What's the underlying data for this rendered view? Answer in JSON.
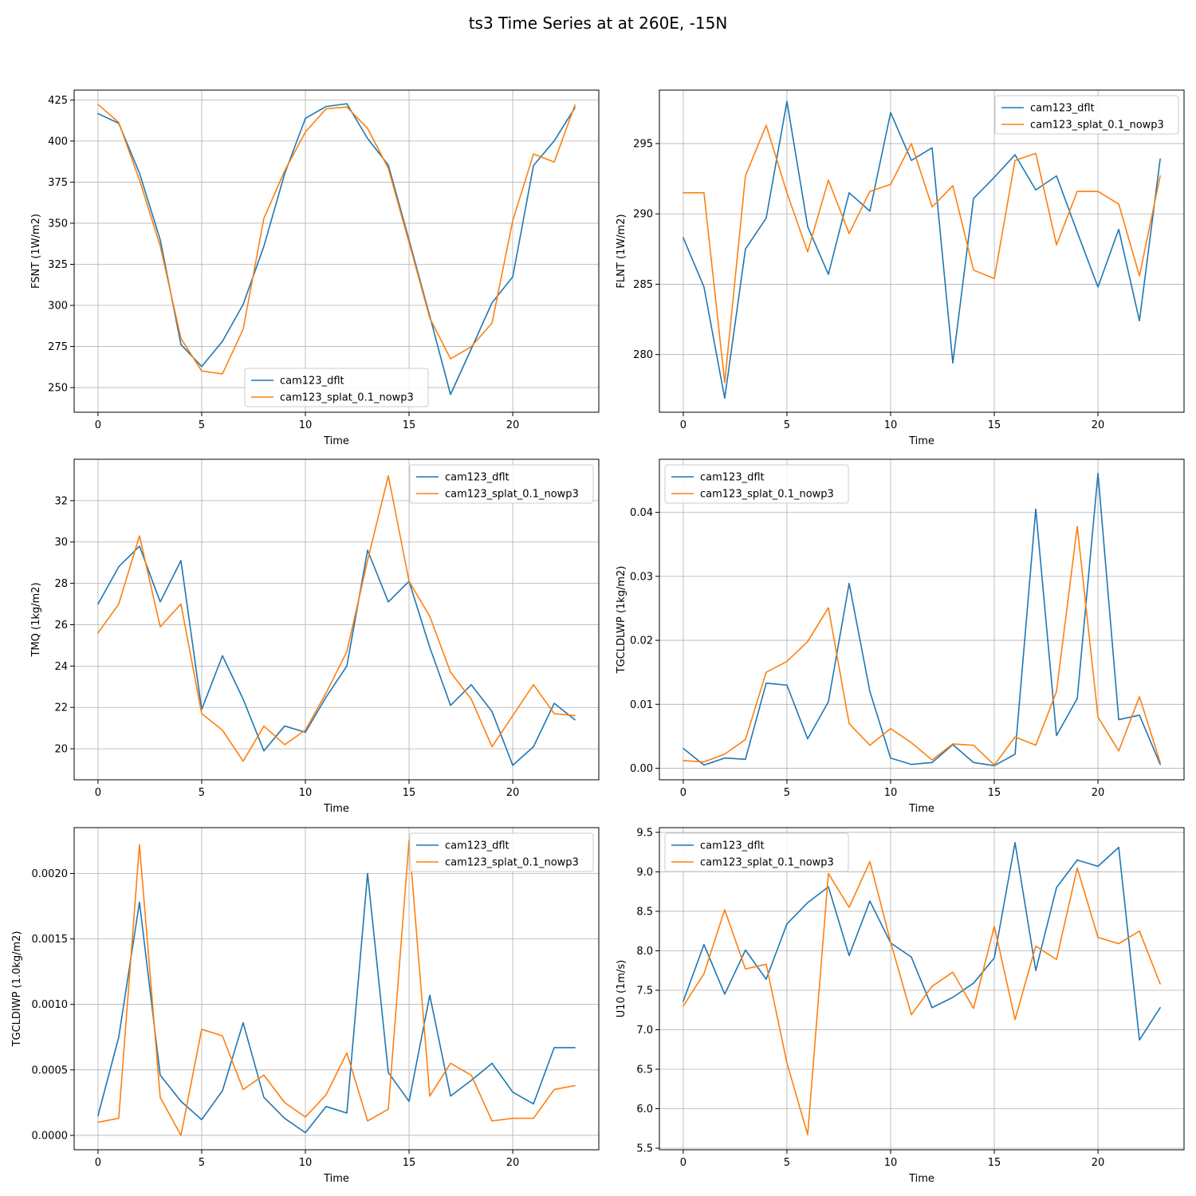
{
  "title": "ts3 Time Series at at 260E, -15N",
  "colors": {
    "cam123_dflt": "#1f77b4",
    "cam123_splat_0.1_nowp3": "#ff7f0e"
  },
  "chart_data": [
    {
      "type": "line",
      "id": "fsnt",
      "title": "",
      "xlabel": "Time",
      "ylabel": "FSNT (1W/m2)",
      "xlim": [
        -1.15,
        24.15
      ],
      "ylim": [
        235,
        431
      ],
      "xticks": [
        "0",
        "5",
        "10",
        "15",
        "20"
      ],
      "xtick_values": [
        0,
        5,
        10,
        15,
        20
      ],
      "yticks": [
        "250",
        "275",
        "300",
        "325",
        "350",
        "375",
        "400",
        "425"
      ],
      "ytick_values": [
        250,
        275,
        300,
        325,
        350,
        375,
        400,
        425
      ],
      "legend_loc": "lower-center",
      "x": [
        0,
        1,
        2,
        3,
        4,
        5,
        6,
        7,
        8,
        9,
        10,
        11,
        12,
        13,
        14,
        15,
        16,
        17,
        18,
        19,
        20,
        21,
        22,
        23
      ],
      "series": [
        {
          "name": "cam123_dflt",
          "values": [
            416.7,
            410.8,
            380.5,
            340.0,
            276.2,
            262.8,
            278.1,
            300.6,
            336.0,
            380.0,
            413.8,
            421.0,
            422.7,
            401.6,
            385.4,
            339.8,
            293.5,
            245.8,
            273.5,
            301.6,
            317.4,
            385.1,
            400.1,
            420.3
          ]
        },
        {
          "name": "cam123_splat_0.1_nowp3",
          "values": [
            422.3,
            411.3,
            376.3,
            336.2,
            279.9,
            260.1,
            258.3,
            285.5,
            353.0,
            381.8,
            405.5,
            419.6,
            420.7,
            407.7,
            383.4,
            338.2,
            292.3,
            267.5,
            274.9,
            289.2,
            351.6,
            392.1,
            387.2,
            421.9
          ]
        }
      ]
    },
    {
      "type": "line",
      "id": "flnt",
      "title": "",
      "xlabel": "Time",
      "ylabel": "FLNT (1W/m2)",
      "xlim": [
        -1.15,
        24.15
      ],
      "ylim": [
        275.9,
        298.8
      ],
      "xticks": [
        "0",
        "5",
        "10",
        "15",
        "20"
      ],
      "xtick_values": [
        0,
        5,
        10,
        15,
        20
      ],
      "yticks": [
        "280",
        "285",
        "290",
        "295"
      ],
      "ytick_values": [
        280,
        285,
        290,
        295
      ],
      "legend_loc": "upper-right",
      "x": [
        0,
        1,
        2,
        3,
        4,
        5,
        6,
        7,
        8,
        9,
        10,
        11,
        12,
        13,
        14,
        15,
        16,
        17,
        18,
        19,
        20,
        21,
        22,
        23
      ],
      "series": [
        {
          "name": "cam123_dflt",
          "values": [
            288.3,
            284.8,
            276.9,
            287.5,
            289.7,
            298.0,
            289.1,
            285.7,
            291.5,
            290.2,
            297.2,
            293.8,
            294.7,
            279.4,
            291.1,
            292.6,
            294.2,
            291.7,
            292.7,
            288.7,
            284.8,
            288.9,
            282.4,
            293.9
          ]
        },
        {
          "name": "cam123_splat_0.1_nowp3",
          "values": [
            291.5,
            291.5,
            278.0,
            292.7,
            296.3,
            291.5,
            287.3,
            292.4,
            288.6,
            291.6,
            292.1,
            295.0,
            290.5,
            292.0,
            286.0,
            285.4,
            293.8,
            294.3,
            287.8,
            291.6,
            291.6,
            290.7,
            285.6,
            292.7
          ]
        }
      ]
    },
    {
      "type": "line",
      "id": "tmq",
      "title": "",
      "xlabel": "Time",
      "ylabel": "TMQ (1kg/m2)",
      "xlim": [
        -1.15,
        24.15
      ],
      "ylim": [
        18.5,
        34.0
      ],
      "xticks": [
        "0",
        "5",
        "10",
        "15",
        "20"
      ],
      "xtick_values": [
        0,
        5,
        10,
        15,
        20
      ],
      "yticks": [
        "20",
        "22",
        "24",
        "26",
        "28",
        "30",
        "32"
      ],
      "ytick_values": [
        20,
        22,
        24,
        26,
        28,
        30,
        32
      ],
      "legend_loc": "upper-right",
      "x": [
        0,
        1,
        2,
        3,
        4,
        5,
        6,
        7,
        8,
        9,
        10,
        11,
        12,
        13,
        14,
        15,
        16,
        17,
        18,
        19,
        20,
        21,
        22,
        23
      ],
      "series": [
        {
          "name": "cam123_dflt",
          "values": [
            27.0,
            28.8,
            29.8,
            27.1,
            29.1,
            21.9,
            24.5,
            22.4,
            19.9,
            21.1,
            20.8,
            22.5,
            24.0,
            29.6,
            27.1,
            28.1,
            24.9,
            22.1,
            23.1,
            21.8,
            19.2,
            20.1,
            22.2,
            21.4
          ]
        },
        {
          "name": "cam123_splat_0.1_nowp3",
          "values": [
            25.6,
            27.0,
            30.3,
            25.9,
            27.0,
            21.7,
            20.9,
            19.4,
            21.1,
            20.2,
            20.9,
            22.7,
            24.7,
            29.1,
            33.2,
            28.1,
            26.4,
            23.7,
            22.4,
            20.1,
            21.6,
            23.1,
            21.7,
            21.6
          ]
        }
      ]
    },
    {
      "type": "line",
      "id": "tgcldlwp",
      "title": "",
      "xlabel": "Time",
      "ylabel": "TGCLDLWP (1kg/m2)",
      "xlim": [
        -1.15,
        24.15
      ],
      "ylim": [
        -0.0018,
        0.0483
      ],
      "xticks": [
        "0",
        "5",
        "10",
        "15",
        "20"
      ],
      "xtick_values": [
        0,
        5,
        10,
        15,
        20
      ],
      "yticks": [
        "0.00",
        "0.01",
        "0.02",
        "0.03",
        "0.04"
      ],
      "ytick_values": [
        0,
        0.01,
        0.02,
        0.03,
        0.04
      ],
      "legend_loc": "upper-left",
      "x": [
        0,
        1,
        2,
        3,
        4,
        5,
        6,
        7,
        8,
        9,
        10,
        11,
        12,
        13,
        14,
        15,
        16,
        17,
        18,
        19,
        20,
        21,
        22,
        23
      ],
      "series": [
        {
          "name": "cam123_dflt",
          "values": [
            0.0031,
            0.0005,
            0.0016,
            0.0014,
            0.0133,
            0.013,
            0.0046,
            0.0104,
            0.0289,
            0.012,
            0.0016,
            0.0006,
            0.0009,
            0.0037,
            0.0009,
            0.0004,
            0.0022,
            0.0405,
            0.0051,
            0.0109,
            0.0461,
            0.0076,
            0.0083,
            0.0006
          ]
        },
        {
          "name": "cam123_splat_0.1_nowp3",
          "values": [
            0.0012,
            0.001,
            0.0022,
            0.0045,
            0.015,
            0.0167,
            0.0198,
            0.0251,
            0.007,
            0.0036,
            0.0062,
            0.004,
            0.0013,
            0.0038,
            0.0036,
            0.0005,
            0.0049,
            0.0036,
            0.012,
            0.0378,
            0.008,
            0.0027,
            0.0112,
            0.0009
          ]
        }
      ]
    },
    {
      "type": "line",
      "id": "tgcldiwp",
      "title": "",
      "xlabel": "Time",
      "ylabel": "TGCLDIWP (1.0kg/m2)",
      "xlim": [
        -1.15,
        24.15
      ],
      "ylim": [
        -0.00011,
        0.00235
      ],
      "xticks": [
        "0",
        "5",
        "10",
        "15",
        "20"
      ],
      "xtick_values": [
        0,
        5,
        10,
        15,
        20
      ],
      "yticks": [
        "0.0000",
        "0.0005",
        "0.0010",
        "0.0015",
        "0.0020"
      ],
      "ytick_values": [
        0,
        0.0005,
        0.001,
        0.0015,
        0.002
      ],
      "legend_loc": "upper-right",
      "x": [
        0,
        1,
        2,
        3,
        4,
        5,
        6,
        7,
        8,
        9,
        10,
        11,
        12,
        13,
        14,
        15,
        16,
        17,
        18,
        19,
        20,
        21,
        22,
        23
      ],
      "series": [
        {
          "name": "cam123_dflt",
          "values": [
            0.00015,
            0.00075,
            0.00178,
            0.00046,
            0.00026,
            0.00012,
            0.00034,
            0.00086,
            0.00029,
            0.00013,
            2e-05,
            0.00022,
            0.00017,
            0.002,
            0.00048,
            0.00026,
            0.00107,
            0.0003,
            0.00042,
            0.00055,
            0.00033,
            0.00024,
            0.00067,
            0.00067
          ]
        },
        {
          "name": "cam123_splat_0.1_nowp3",
          "values": [
            0.0001,
            0.00013,
            0.00222,
            0.00029,
            0.0,
            0.00081,
            0.00076,
            0.00035,
            0.00046,
            0.00025,
            0.00014,
            0.00031,
            0.00063,
            0.00011,
            0.0002,
            0.00225,
            0.0003,
            0.00055,
            0.00046,
            0.00011,
            0.00013,
            0.00013,
            0.00035,
            0.00038
          ]
        }
      ]
    },
    {
      "type": "line",
      "id": "u10",
      "title": "",
      "xlabel": "Time",
      "ylabel": "U10 (1m/s)",
      "xlim": [
        -1.15,
        24.15
      ],
      "ylim": [
        5.48,
        9.56
      ],
      "xticks": [
        "0",
        "5",
        "10",
        "15",
        "20"
      ],
      "xtick_values": [
        0,
        5,
        10,
        15,
        20
      ],
      "yticks": [
        "5.5",
        "6.0",
        "6.5",
        "7.0",
        "7.5",
        "8.0",
        "8.5",
        "9.0",
        "9.5"
      ],
      "ytick_values": [
        5.5,
        6.0,
        6.5,
        7.0,
        7.5,
        8.0,
        8.5,
        9.0,
        9.5
      ],
      "legend_loc": "upper-left",
      "x": [
        0,
        1,
        2,
        3,
        4,
        5,
        6,
        7,
        8,
        9,
        10,
        11,
        12,
        13,
        14,
        15,
        16,
        17,
        18,
        19,
        20,
        21,
        22,
        23
      ],
      "series": [
        {
          "name": "cam123_dflt",
          "values": [
            7.36,
            8.08,
            7.45,
            8.01,
            7.64,
            8.34,
            8.61,
            8.81,
            7.94,
            8.63,
            8.1,
            7.92,
            7.28,
            7.41,
            7.59,
            7.91,
            9.37,
            7.75,
            8.8,
            9.15,
            9.07,
            9.31,
            6.87,
            7.28
          ]
        },
        {
          "name": "cam123_splat_0.1_nowp3",
          "values": [
            7.3,
            7.71,
            8.52,
            7.77,
            7.83,
            6.58,
            5.67,
            8.98,
            8.55,
            9.13,
            8.11,
            7.19,
            7.55,
            7.73,
            7.27,
            8.31,
            7.13,
            8.06,
            7.89,
            9.05,
            8.17,
            8.09,
            8.25,
            7.58
          ]
        }
      ]
    }
  ]
}
